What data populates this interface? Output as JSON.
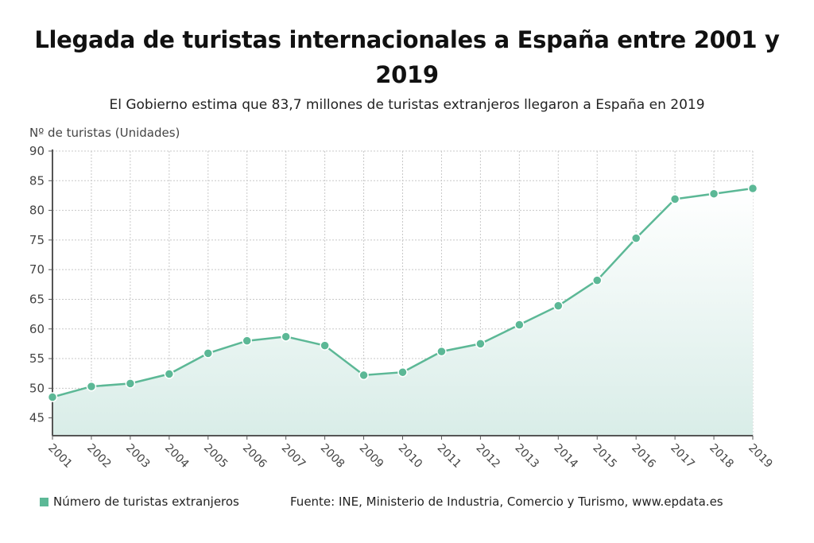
{
  "header": {
    "title": "Llegada de turistas internacionales a España entre 2001 y 2019",
    "subtitle": "El Gobierno estima que 83,7 millones de turistas extranjeros llegaron a España en 2019"
  },
  "footer": {
    "legend_label": "Número de turistas extranjeros",
    "source": "Fuente: INE, Ministerio de Industria, Comercio y Turismo, www.epdata.es"
  },
  "colors": {
    "series": "#5cb896",
    "fill_top": "#ffffff",
    "fill_bottom": "#d9ede8",
    "grid": "#c8c8c8",
    "axis": "#555555"
  },
  "chart_data": {
    "type": "line",
    "title": "Llegada de turistas internacionales a España entre 2001 y 2019",
    "subtitle": "El Gobierno estima que 83,7 millones de turistas extranjeros llegaron a España en 2019",
    "xlabel": "",
    "ylabel": "Nº de turistas (Unidades)",
    "ylim": [
      42,
      90
    ],
    "yticks": [
      45,
      50,
      55,
      60,
      65,
      70,
      75,
      80,
      85,
      90
    ],
    "grid": true,
    "legend_position": "bottom-left",
    "categories": [
      "2001",
      "2002",
      "2003",
      "2004",
      "2005",
      "2006",
      "2007",
      "2008",
      "2009",
      "2010",
      "2011",
      "2012",
      "2013",
      "2014",
      "2015",
      "2016",
      "2017",
      "2018",
      "2019"
    ],
    "series": [
      {
        "name": "Número de turistas extranjeros",
        "values": [
          48.5,
          50.3,
          50.8,
          52.4,
          55.9,
          58.0,
          58.7,
          57.2,
          52.2,
          52.7,
          56.2,
          57.5,
          60.7,
          63.9,
          68.2,
          75.3,
          81.9,
          82.8,
          83.7
        ]
      }
    ]
  }
}
